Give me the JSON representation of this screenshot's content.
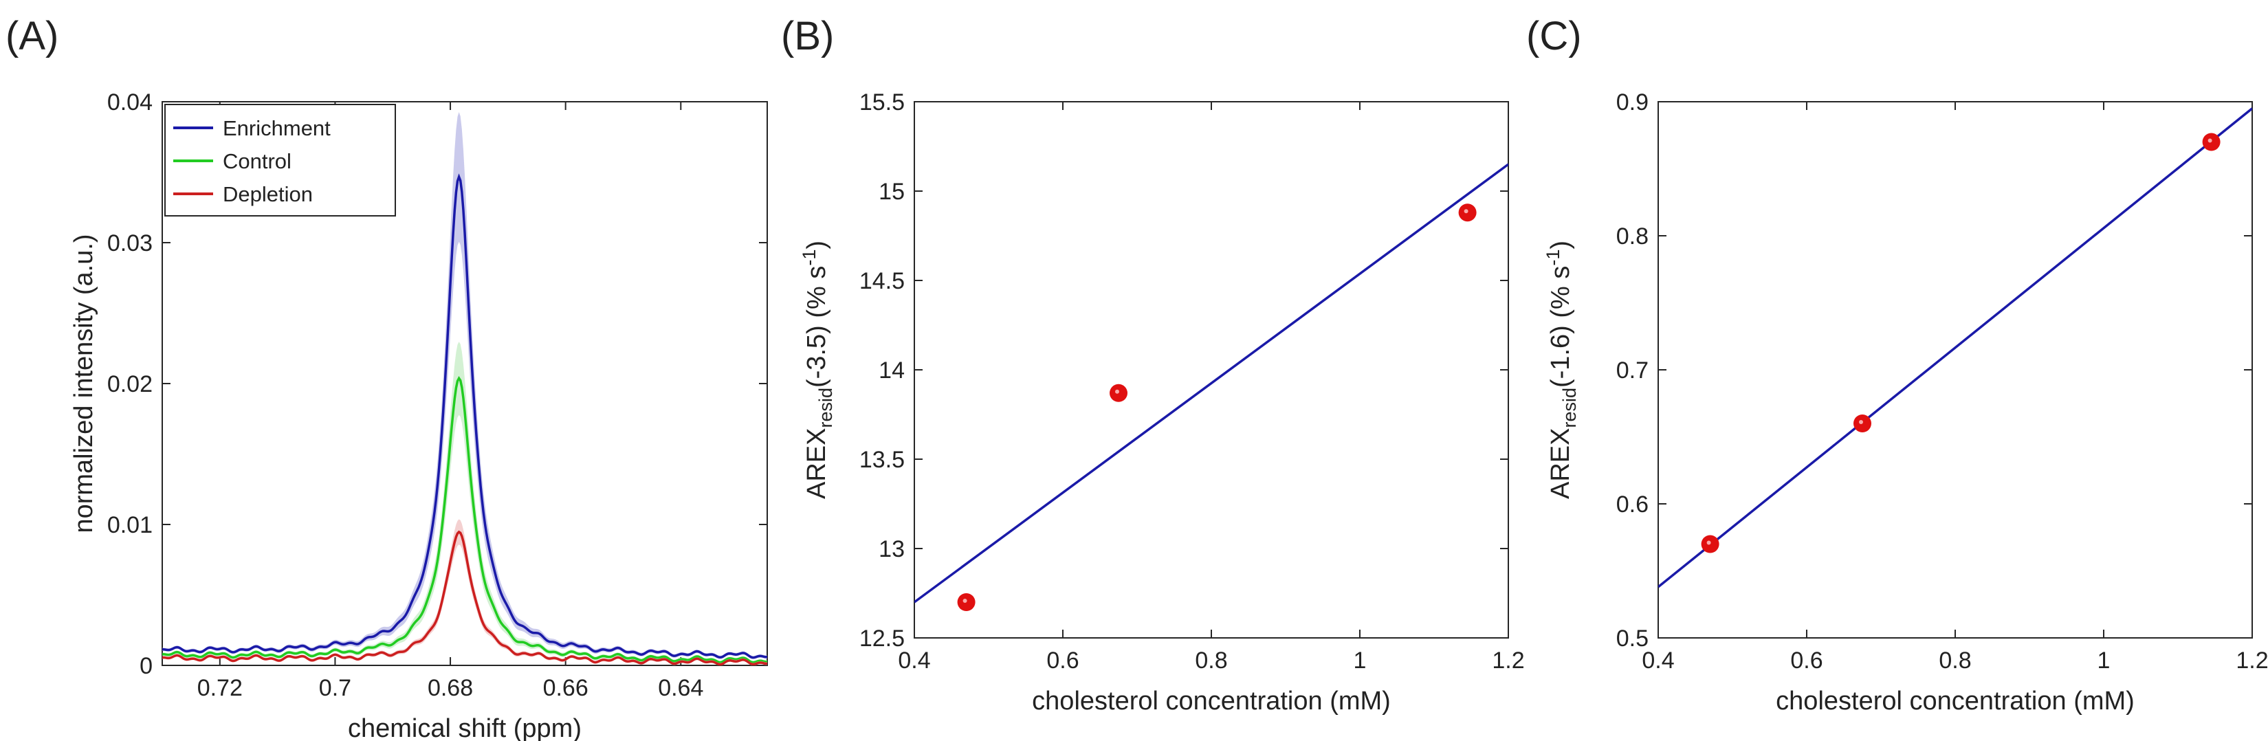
{
  "chart_data": [
    {
      "panel": "(A)",
      "type": "line",
      "xlabel": "chemical shift (ppm)",
      "ylabel": "normalized intensity (a.u.)",
      "xlim": [
        0.73,
        0.625
      ],
      "x_reversed": true,
      "ylim": [
        0,
        0.04
      ],
      "xticks": [
        "0.72",
        "0.7",
        "0.68",
        "0.66",
        "0.64"
      ],
      "xtick_values": [
        0.72,
        0.7,
        0.68,
        0.66,
        0.64
      ],
      "yticks": [
        "0",
        "0.01",
        "0.02",
        "0.03",
        "0.04"
      ],
      "ytick_values": [
        0,
        0.01,
        0.02,
        0.03,
        0.04
      ],
      "legend_position": "top-left",
      "grid": false,
      "series": [
        {
          "name": "Enrichment",
          "color": "#1a1aa8",
          "band": "#b8b8e6",
          "baseline": 0.001,
          "tail": 0.0006,
          "peak_x": 0.6785,
          "peak_y": 0.0345,
          "band_half": 0.0045
        },
        {
          "name": "Control",
          "color": "#22cc22",
          "band": "#c4ecc4",
          "baseline": 0.0007,
          "tail": 0.0003,
          "peak_x": 0.6785,
          "peak_y": 0.0202,
          "band_half": 0.0025
        },
        {
          "name": "Depletion",
          "color": "#cc1f1f",
          "band": "#f0c0c0",
          "baseline": 0.0005,
          "tail": 0.0002,
          "peak_x": 0.6785,
          "peak_y": 0.0093,
          "band_half": 0.0008
        }
      ]
    },
    {
      "panel": "(B)",
      "type": "scatter",
      "xlabel": "cholesterol concentration (mM)",
      "ylabel_main": "AREX",
      "ylabel_sub": "resid",
      "ylabel_rest": "(-3.5) (% s",
      "ylabel_sup": "-1",
      "ylabel_end": ")",
      "xlim": [
        0.4,
        1.2
      ],
      "ylim": [
        12.5,
        15.5
      ],
      "xticks": [
        "0.4",
        "0.6",
        "0.8",
        "1",
        "1.2"
      ],
      "xtick_values": [
        0.4,
        0.6,
        0.8,
        1.0,
        1.2
      ],
      "yticks": [
        "12.5",
        "13",
        "13.5",
        "14",
        "14.5",
        "15",
        "15.5"
      ],
      "ytick_values": [
        12.5,
        13,
        13.5,
        14,
        14.5,
        15,
        15.5
      ],
      "points": [
        {
          "x": 0.47,
          "y": 12.7
        },
        {
          "x": 0.675,
          "y": 13.87
        },
        {
          "x": 1.145,
          "y": 14.88
        }
      ],
      "fit_line": {
        "x": [
          0.4,
          1.2
        ],
        "y": [
          12.7,
          15.15
        ]
      },
      "point_color": "#e01010",
      "line_color": "#1a1aa8"
    },
    {
      "panel": "(C)",
      "type": "scatter",
      "xlabel": "cholesterol concentration (mM)",
      "ylabel_main": "AREX",
      "ylabel_sub": "resid",
      "ylabel_rest": "(-1.6) (% s",
      "ylabel_sup": "-1",
      "ylabel_end": ")",
      "xlim": [
        0.4,
        1.2
      ],
      "ylim": [
        0.5,
        0.9
      ],
      "xticks": [
        "0.4",
        "0.6",
        "0.8",
        "1",
        "1.2"
      ],
      "xtick_values": [
        0.4,
        0.6,
        0.8,
        1.0,
        1.2
      ],
      "yticks": [
        "0.5",
        "0.6",
        "0.7",
        "0.8",
        "0.9"
      ],
      "ytick_values": [
        0.5,
        0.6,
        0.7,
        0.8,
        0.9
      ],
      "points": [
        {
          "x": 0.47,
          "y": 0.57
        },
        {
          "x": 0.675,
          "y": 0.66
        },
        {
          "x": 1.145,
          "y": 0.87
        }
      ],
      "fit_line": {
        "x": [
          0.4,
          1.2
        ],
        "y": [
          0.538,
          0.895
        ]
      },
      "point_color": "#e01010",
      "line_color": "#1a1aa8"
    }
  ]
}
